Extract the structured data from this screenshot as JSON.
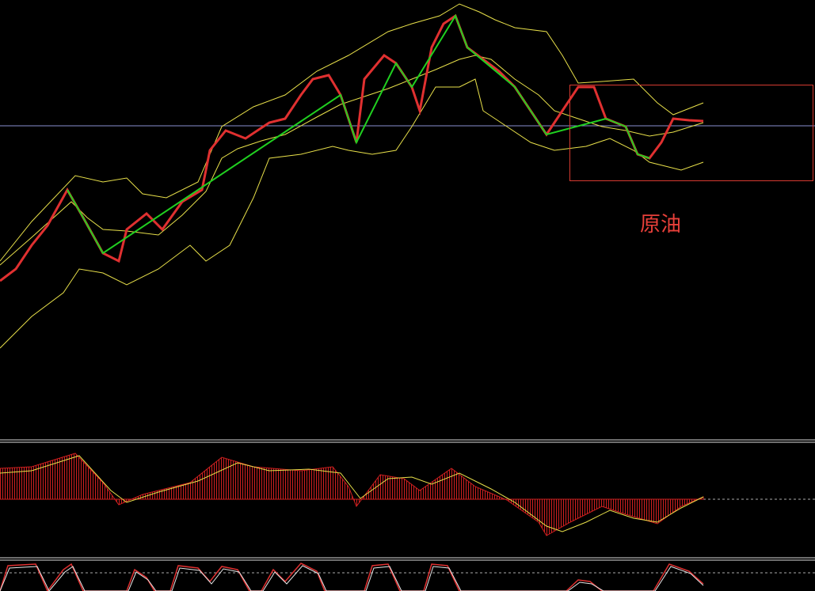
{
  "annotation": "原油"
}
